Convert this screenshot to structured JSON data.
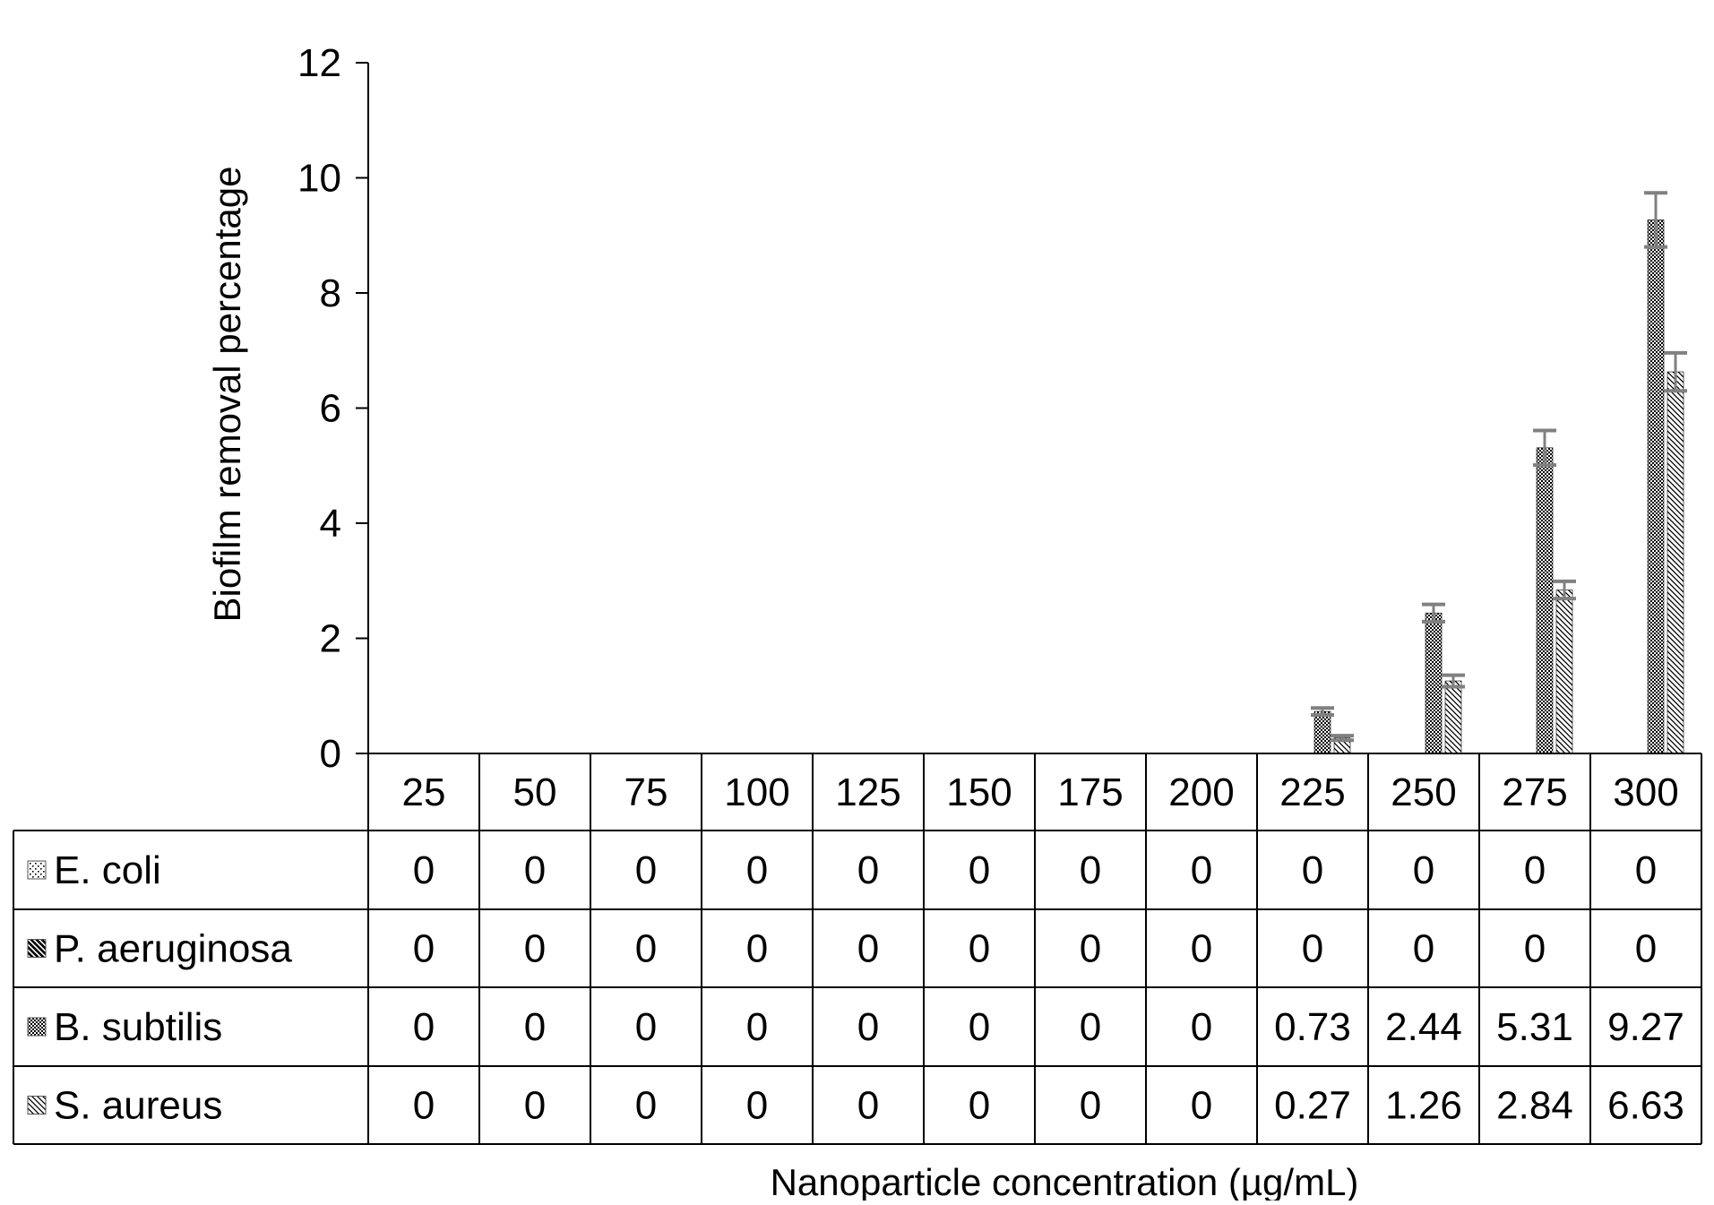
{
  "chart_data": {
    "type": "bar",
    "title": "",
    "xlabel": "Nanoparticle concentration (µg/mL)",
    "ylabel": "Biofilm removal percentage",
    "ylim": [
      0,
      12
    ],
    "yticks": [
      0,
      2,
      4,
      6,
      8,
      10,
      12
    ],
    "grid": false,
    "legend": "data-table-rows",
    "categories": [
      "25",
      "50",
      "75",
      "100",
      "125",
      "150",
      "175",
      "200",
      "225",
      "250",
      "275",
      "300"
    ],
    "series": [
      {
        "name": "E. coli",
        "pattern": "dots",
        "values": [
          0,
          0,
          0,
          0,
          0,
          0,
          0,
          0,
          0,
          0,
          0,
          0
        ],
        "labels": [
          "0",
          "0",
          "0",
          "0",
          "0",
          "0",
          "0",
          "0",
          "0",
          "0",
          "0",
          "0"
        ]
      },
      {
        "name": "P. aeruginosa",
        "pattern": "diagonal-bold",
        "values": [
          0,
          0,
          0,
          0,
          0,
          0,
          0,
          0,
          0,
          0,
          0,
          0
        ],
        "labels": [
          "0",
          "0",
          "0",
          "0",
          "0",
          "0",
          "0",
          "0",
          "0",
          "0",
          "0",
          "0"
        ]
      },
      {
        "name": "B. subtilis",
        "pattern": "checker",
        "values": [
          0,
          0,
          0,
          0,
          0,
          0,
          0,
          0,
          0.73,
          2.44,
          5.31,
          9.27
        ],
        "labels": [
          "0",
          "0",
          "0",
          "0",
          "0",
          "0",
          "0",
          "0",
          "0.73",
          "2.44",
          "5.31",
          "9.27"
        ],
        "errors": [
          0,
          0,
          0,
          0,
          0,
          0,
          0,
          0,
          0.06,
          0.15,
          0.3,
          0.47
        ]
      },
      {
        "name": "S. aureus",
        "pattern": "diagonal-light",
        "values": [
          0,
          0,
          0,
          0,
          0,
          0,
          0,
          0,
          0.27,
          1.26,
          2.84,
          6.63
        ],
        "labels": [
          "0",
          "0",
          "0",
          "0",
          "0",
          "0",
          "0",
          "0",
          "0.27",
          "1.26",
          "2.84",
          "6.63"
        ],
        "errors": [
          0,
          0,
          0,
          0,
          0,
          0,
          0,
          0,
          0.04,
          0.1,
          0.15,
          0.33
        ]
      }
    ],
    "colors": {
      "bar_fill": "#000000",
      "error_bar": "#808080",
      "axis": "#000000",
      "table_border": "#000000"
    }
  }
}
